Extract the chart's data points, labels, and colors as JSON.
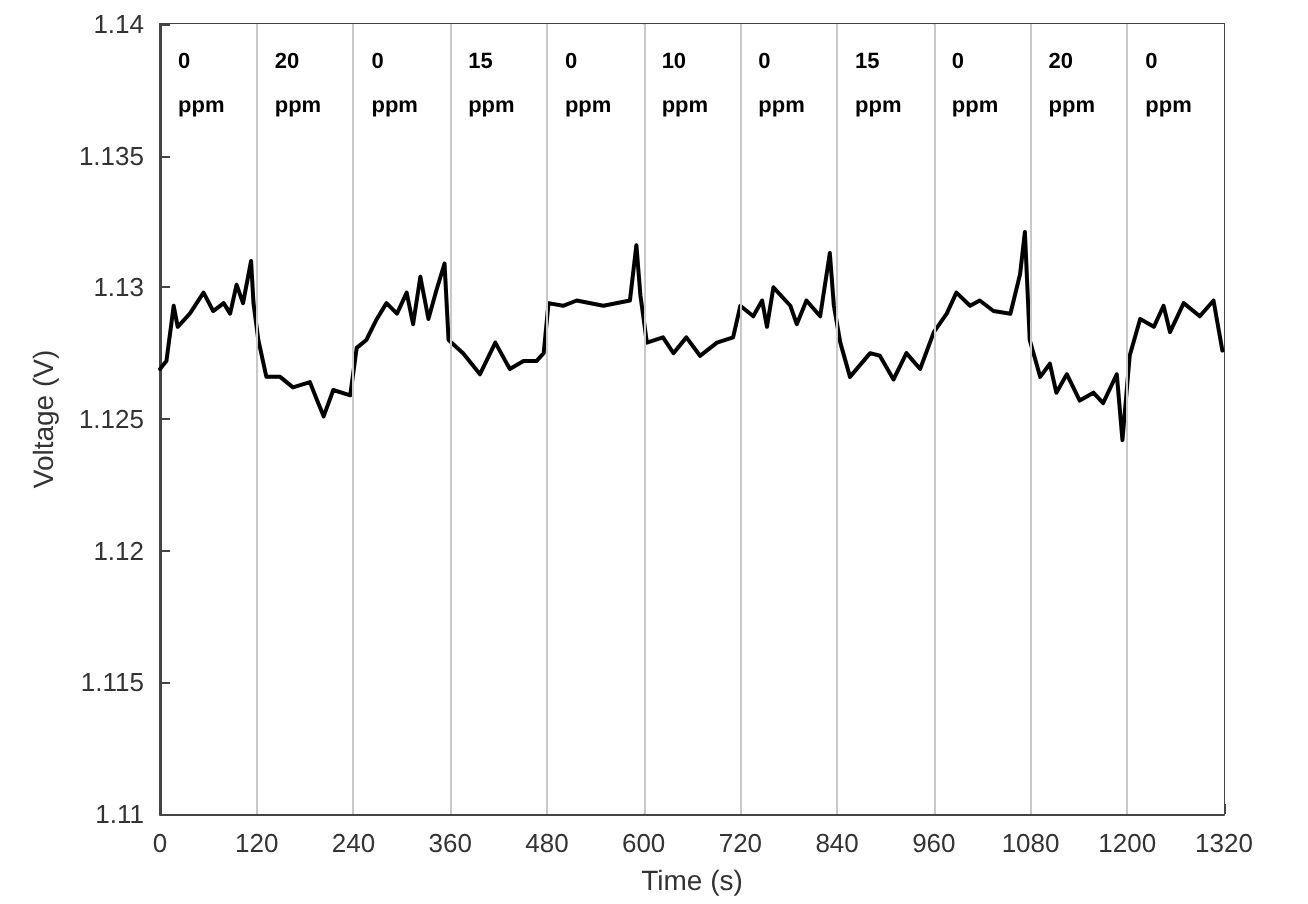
{
  "chart_data": {
    "type": "line",
    "xlabel": "Time (s)",
    "ylabel": "Voltage (V)",
    "x": [
      0,
      8,
      17,
      22,
      37,
      54,
      66,
      79,
      87,
      95,
      103,
      113,
      116,
      122,
      132,
      149,
      165,
      186,
      195,
      203,
      215,
      236,
      244,
      256,
      269,
      281,
      294,
      306,
      314,
      323,
      333,
      343,
      353,
      358,
      376,
      397,
      416,
      434,
      451,
      467,
      476,
      482,
      500,
      517,
      550,
      583,
      591,
      596,
      604,
      624,
      637,
      653,
      670,
      691,
      711,
      720,
      736,
      747,
      753,
      761,
      782,
      790,
      802,
      819,
      831,
      836,
      844,
      856,
      881,
      893,
      910,
      926,
      943,
      960,
      976,
      988,
      1005,
      1017,
      1034,
      1055,
      1067,
      1073,
      1079,
      1092,
      1104,
      1112,
      1125,
      1141,
      1158,
      1170,
      1187,
      1194,
      1203,
      1216,
      1233,
      1245,
      1253,
      1270,
      1290,
      1307,
      1318
    ],
    "series": [
      {
        "color": "#000000",
        "values": [
          1.1269,
          1.1272,
          1.1293,
          1.1285,
          1.129,
          1.1298,
          1.1291,
          1.1294,
          1.129,
          1.1301,
          1.1294,
          1.131,
          1.1294,
          1.128,
          1.1266,
          1.1266,
          1.1262,
          1.1264,
          1.1257,
          1.1251,
          1.1261,
          1.1259,
          1.1277,
          1.128,
          1.1288,
          1.1294,
          1.129,
          1.1298,
          1.1286,
          1.1304,
          1.1288,
          1.1299,
          1.1309,
          1.128,
          1.1275,
          1.1267,
          1.1279,
          1.1269,
          1.1272,
          1.1272,
          1.1275,
          1.1294,
          1.1293,
          1.1295,
          1.1293,
          1.1295,
          1.1316,
          1.1297,
          1.1279,
          1.1281,
          1.1275,
          1.1281,
          1.1274,
          1.1279,
          1.1281,
          1.1293,
          1.1289,
          1.1295,
          1.1285,
          1.13,
          1.1293,
          1.1286,
          1.1295,
          1.1289,
          1.1313,
          1.1293,
          1.1279,
          1.1266,
          1.1275,
          1.1274,
          1.1265,
          1.1275,
          1.1269,
          1.1283,
          1.129,
          1.1298,
          1.1293,
          1.1295,
          1.1291,
          1.129,
          1.1305,
          1.1321,
          1.128,
          1.1266,
          1.1271,
          1.126,
          1.1267,
          1.1257,
          1.126,
          1.1256,
          1.1267,
          1.1242,
          1.1274,
          1.1288,
          1.1285,
          1.1293,
          1.1283,
          1.1294,
          1.1289,
          1.1295,
          1.1276
        ]
      }
    ],
    "xlim": [
      0,
      1320
    ],
    "xticks": [
      0,
      120,
      240,
      360,
      480,
      600,
      720,
      840,
      960,
      1080,
      1200,
      1320
    ],
    "ylim": [
      1.11,
      1.14
    ],
    "yticks": [
      1.11,
      1.115,
      1.12,
      1.125,
      1.13,
      1.135,
      1.14
    ],
    "grid": false,
    "marker": "none",
    "line_style": "solid",
    "ref_lines": [
      {
        "axis": "x",
        "value": 120,
        "color": "#c8c8c8"
      },
      {
        "axis": "x",
        "value": 240,
        "color": "#c8c8c8"
      },
      {
        "axis": "x",
        "value": 360,
        "color": "#c8c8c8"
      },
      {
        "axis": "x",
        "value": 480,
        "color": "#c8c8c8"
      },
      {
        "axis": "x",
        "value": 600,
        "color": "#c8c8c8"
      },
      {
        "axis": "x",
        "value": 720,
        "color": "#c8c8c8"
      },
      {
        "axis": "x",
        "value": 840,
        "color": "#c8c8c8"
      },
      {
        "axis": "x",
        "value": 960,
        "color": "#c8c8c8"
      },
      {
        "axis": "x",
        "value": 1080,
        "color": "#c8c8c8"
      },
      {
        "axis": "x",
        "value": 1200,
        "color": "#c8c8c8"
      }
    ],
    "bands": [
      {
        "axis": "x",
        "from": 0,
        "to": 120,
        "label": "0 ppm",
        "color": "#ffffff"
      },
      {
        "axis": "x",
        "from": 120,
        "to": 240,
        "label": "20 ppm",
        "color": "#ffffff"
      },
      {
        "axis": "x",
        "from": 240,
        "to": 360,
        "label": "0 ppm",
        "color": "#ffffff"
      },
      {
        "axis": "x",
        "from": 360,
        "to": 480,
        "label": "15 ppm",
        "color": "#ffffff"
      },
      {
        "axis": "x",
        "from": 480,
        "to": 600,
        "label": "0 ppm",
        "color": "#ffffff"
      },
      {
        "axis": "x",
        "from": 600,
        "to": 720,
        "label": "10 ppm",
        "color": "#ffffff"
      },
      {
        "axis": "x",
        "from": 720,
        "to": 840,
        "label": "0 ppm",
        "color": "#ffffff"
      },
      {
        "axis": "x",
        "from": 840,
        "to": 960,
        "label": "15 ppm",
        "color": "#ffffff"
      },
      {
        "axis": "x",
        "from": 960,
        "to": 1080,
        "label": "0 ppm",
        "color": "#ffffff"
      },
      {
        "axis": "x",
        "from": 1080,
        "to": 1200,
        "label": "20 ppm",
        "color": "#ffffff"
      },
      {
        "axis": "x",
        "from": 1200,
        "to": 1320,
        "label": "0 ppm",
        "color": "#ffffff"
      }
    ]
  }
}
